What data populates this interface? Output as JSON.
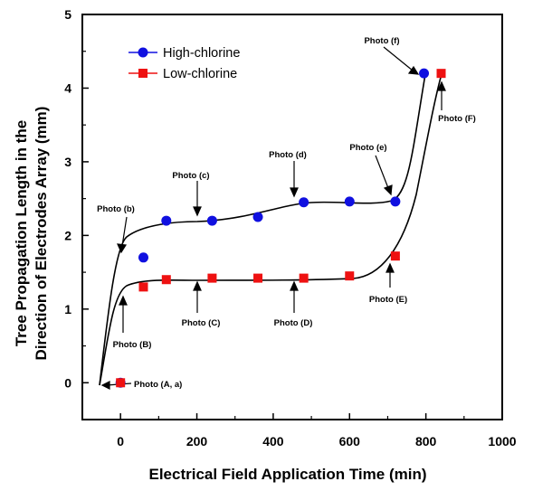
{
  "chart_data": {
    "type": "scatter",
    "title": "",
    "xlabel": "Electrical Field Application Time (min)",
    "ylabel_line1": "Tree Propagation Length in the",
    "ylabel_line2": "Direction of Electrodes Array (mm)",
    "xlim": [
      -100,
      1000
    ],
    "ylim": [
      -0.5,
      5
    ],
    "xticks": [
      0,
      200,
      400,
      600,
      800,
      1000
    ],
    "xtick_labels": [
      "0",
      "200",
      "400",
      "600",
      "800",
      "1000"
    ],
    "yticks": [
      0,
      1,
      2,
      3,
      4,
      5
    ],
    "ytick_labels": [
      "0",
      "1",
      "2",
      "3",
      "4",
      "5"
    ],
    "legend_position": "top-left",
    "series": [
      {
        "name": "High-chlorine",
        "color": "#1010e0",
        "marker": "circle",
        "x": [
          0,
          60,
          120,
          240,
          360,
          480,
          600,
          720,
          795
        ],
        "y": [
          0,
          1.7,
          2.2,
          2.2,
          2.25,
          2.45,
          2.46,
          2.46,
          4.2
        ]
      },
      {
        "name": "Low-chlorine",
        "color": "#ee1111",
        "marker": "square",
        "x": [
          0,
          60,
          120,
          240,
          360,
          480,
          600,
          720,
          840
        ],
        "y": [
          0,
          1.3,
          1.4,
          1.42,
          1.42,
          1.42,
          1.45,
          1.72,
          4.2
        ]
      }
    ],
    "annotations": [
      {
        "text": "Photo (A, a)",
        "x": 0,
        "y": 0
      },
      {
        "text": "Photo (b)",
        "x": 60,
        "y": 1.7
      },
      {
        "text": "Photo (c)",
        "x": 240,
        "y": 2.2
      },
      {
        "text": "Photo (d)",
        "x": 480,
        "y": 2.45
      },
      {
        "text": "Photo (e)",
        "x": 720,
        "y": 2.46
      },
      {
        "text": "Photo (f)",
        "x": 795,
        "y": 4.2
      },
      {
        "text": "Photo (B)",
        "x": 60,
        "y": 1.3
      },
      {
        "text": "Photo (C)",
        "x": 240,
        "y": 1.42
      },
      {
        "text": "Photo (D)",
        "x": 480,
        "y": 1.42
      },
      {
        "text": "Photo (E)",
        "x": 720,
        "y": 1.72
      },
      {
        "text": "Photo (F)",
        "x": 840,
        "y": 4.2
      }
    ]
  }
}
